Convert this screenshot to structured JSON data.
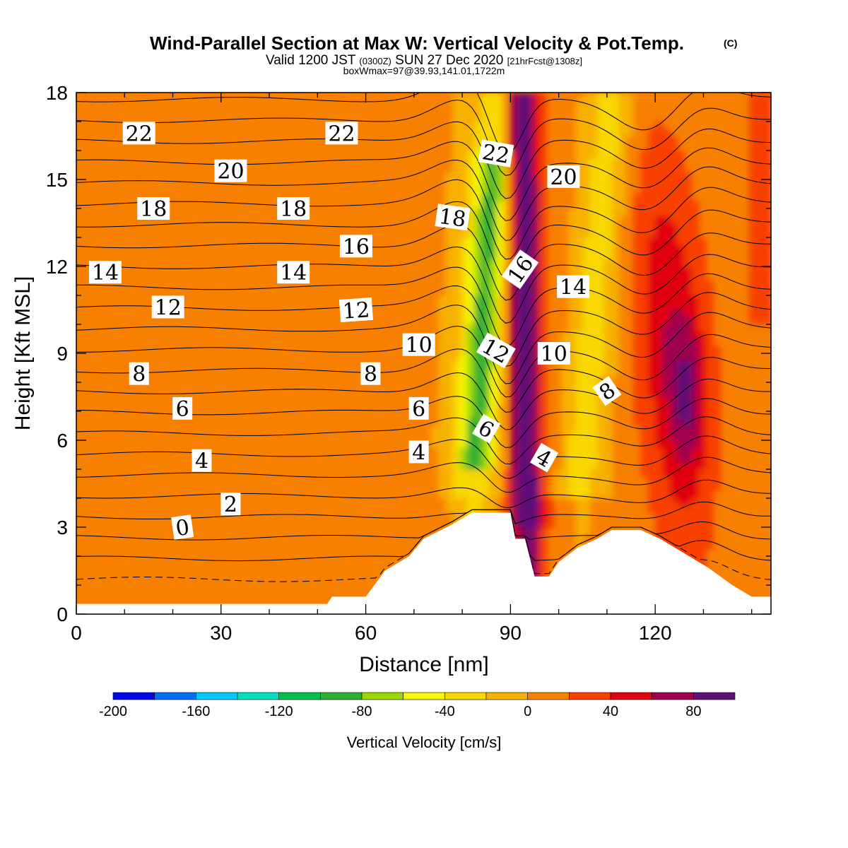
{
  "title": "Wind-Parallel Section at Max W: Vertical Velocity & Pot.Temp.",
  "title_mark": "(C)",
  "subtitle": {
    "part1": "Valid 1200 JST",
    "part2": "(0300Z)",
    "part3": "SUN 27 Dec 2020",
    "part4": "[21hrFcst@1308z]"
  },
  "subtitle2": "boxWmax=97@39.93,141.01,1722m",
  "chart_data": {
    "type": "heatmap",
    "xlabel": "Distance [nm]",
    "ylabel": "Height [Kft MSL]",
    "xlim": [
      0,
      144
    ],
    "ylim": [
      0,
      18
    ],
    "x_ticks": [
      0,
      30,
      60,
      90,
      120
    ],
    "y_ticks": [
      0,
      3,
      6,
      9,
      12,
      15,
      18
    ],
    "colorbar": {
      "label": "Vertical Velocity [cm/s]",
      "range": [
        -200,
        100
      ],
      "step": 20,
      "tick_labels": [
        -200,
        -160,
        -120,
        -80,
        -40,
        0,
        40,
        80
      ],
      "colors": [
        "#0008e8",
        "#0070f0",
        "#00c8f8",
        "#00e0c0",
        "#00c050",
        "#30b030",
        "#98d800",
        "#f8f800",
        "#f8d800",
        "#f8b000",
        "#f88000",
        "#f84000",
        "#e00010",
        "#a00050",
        "#60107a"
      ]
    },
    "field": {
      "background_value": 5,
      "features": [
        {
          "name": "lee updraft",
          "x": 93,
          "z": [
            3.5,
            18
          ],
          "value_max": 97
        },
        {
          "name": "lee downdraft",
          "x": 86,
          "z": [
            5,
            15
          ],
          "value_min": -65
        },
        {
          "name": "upper orange band",
          "x": 45,
          "z": [
            3.5,
            18
          ],
          "value": 15
        },
        {
          "name": "eastern updraft",
          "x": 127,
          "z": [
            5,
            12
          ],
          "value_max": 85
        }
      ]
    },
    "terrain_kft": [
      {
        "x": 0,
        "z": 0.35
      },
      {
        "x": 52,
        "z": 0.35
      },
      {
        "x": 53,
        "z": 0.6
      },
      {
        "x": 60,
        "z": 0.6
      },
      {
        "x": 64,
        "z": 1.5
      },
      {
        "x": 69,
        "z": 2.0
      },
      {
        "x": 72,
        "z": 2.6
      },
      {
        "x": 78,
        "z": 3.1
      },
      {
        "x": 82,
        "z": 3.5
      },
      {
        "x": 90,
        "z": 3.5
      },
      {
        "x": 91,
        "z": 2.6
      },
      {
        "x": 93,
        "z": 2.6
      },
      {
        "x": 95,
        "z": 1.3
      },
      {
        "x": 98,
        "z": 1.3
      },
      {
        "x": 100,
        "z": 1.8
      },
      {
        "x": 104,
        "z": 2.3
      },
      {
        "x": 108,
        "z": 2.6
      },
      {
        "x": 111,
        "z": 2.9
      },
      {
        "x": 117,
        "z": 2.9
      },
      {
        "x": 121,
        "z": 2.6
      },
      {
        "x": 126,
        "z": 2.1
      },
      {
        "x": 131,
        "z": 1.6
      },
      {
        "x": 136,
        "z": 1.0
      },
      {
        "x": 140,
        "z": 0.6
      },
      {
        "x": 144,
        "z": 0.6
      }
    ],
    "theta_contour_levels": [
      0,
      1,
      2,
      3,
      4,
      5,
      6,
      7,
      8,
      9,
      10,
      11,
      12,
      13,
      14,
      15,
      16,
      17,
      18,
      19,
      20,
      21,
      22,
      23
    ],
    "contour_labels": [
      {
        "text": "22",
        "x": 13,
        "z": 16.6,
        "rot": 0
      },
      {
        "text": "22",
        "x": 55,
        "z": 16.6,
        "rot": 0
      },
      {
        "text": "20",
        "x": 32,
        "z": 15.3,
        "rot": 0
      },
      {
        "text": "22",
        "x": 87,
        "z": 15.9,
        "rot": 10
      },
      {
        "text": "20",
        "x": 101,
        "z": 15.1,
        "rot": 0
      },
      {
        "text": "18",
        "x": 16,
        "z": 14.0,
        "rot": 0
      },
      {
        "text": "18",
        "x": 45,
        "z": 14.0,
        "rot": 0
      },
      {
        "text": "18",
        "x": 78,
        "z": 13.7,
        "rot": 8
      },
      {
        "text": "16",
        "x": 58,
        "z": 12.7,
        "rot": 0
      },
      {
        "text": "14",
        "x": 6,
        "z": 11.8,
        "rot": 0
      },
      {
        "text": "14",
        "x": 45,
        "z": 11.8,
        "rot": 0
      },
      {
        "text": "16",
        "x": 92,
        "z": 11.9,
        "rot": -55
      },
      {
        "text": "14",
        "x": 103,
        "z": 11.3,
        "rot": 0
      },
      {
        "text": "12",
        "x": 19,
        "z": 10.6,
        "rot": 0
      },
      {
        "text": "12",
        "x": 58,
        "z": 10.5,
        "rot": -4
      },
      {
        "text": "10",
        "x": 71,
        "z": 9.3,
        "rot": 0
      },
      {
        "text": "12",
        "x": 87,
        "z": 9.1,
        "rot": 30
      },
      {
        "text": "10",
        "x": 99,
        "z": 9.0,
        "rot": 0
      },
      {
        "text": "8",
        "x": 13,
        "z": 8.3,
        "rot": 0
      },
      {
        "text": "8",
        "x": 61,
        "z": 8.3,
        "rot": 0
      },
      {
        "text": "8",
        "x": 110,
        "z": 7.7,
        "rot": -35
      },
      {
        "text": "6",
        "x": 22,
        "z": 7.1,
        "rot": 0
      },
      {
        "text": "6",
        "x": 71,
        "z": 7.1,
        "rot": 0
      },
      {
        "text": "6",
        "x": 85,
        "z": 6.4,
        "rot": 30
      },
      {
        "text": "4",
        "x": 26,
        "z": 5.3,
        "rot": 0
      },
      {
        "text": "4",
        "x": 71,
        "z": 5.6,
        "rot": 0
      },
      {
        "text": "4",
        "x": 97,
        "z": 5.4,
        "rot": 30
      },
      {
        "text": "2",
        "x": 32,
        "z": 3.8,
        "rot": 0
      },
      {
        "text": "0",
        "x": 22,
        "z": 3.0,
        "rot": -8
      }
    ]
  }
}
